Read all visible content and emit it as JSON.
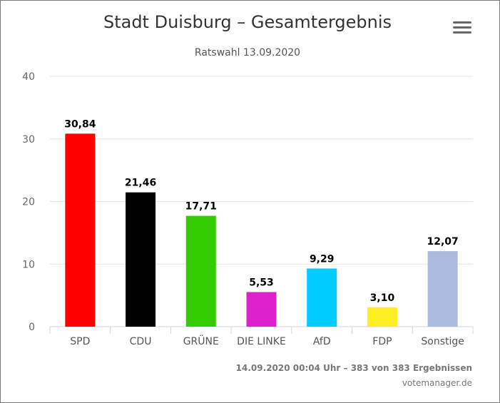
{
  "header": {
    "title": "Stadt Duisburg – Gesamtergebnis",
    "subtitle": "Ratswahl 13.09.2020"
  },
  "footer": {
    "status": "14.09.2020 00:04 Uhr – 383 von 383 Ergebnissen",
    "credit": "votemanager.de"
  },
  "menu_icon": "hamburger-menu-icon",
  "chart_data": {
    "type": "bar",
    "title": "Stadt Duisburg – Gesamtergebnis",
    "subtitle": "Ratswahl 13.09.2020",
    "categories": [
      "SPD",
      "CDU",
      "GRÜNE",
      "DIE LINKE",
      "AfD",
      "FDP",
      "Sonstige"
    ],
    "values": [
      30.84,
      21.46,
      17.71,
      5.53,
      9.29,
      3.1,
      12.07
    ],
    "value_labels": [
      "30,84",
      "21,46",
      "17,71",
      "5,53",
      "9,29",
      "3,10",
      "12,07"
    ],
    "colors": [
      "#ff0000",
      "#000000",
      "#33cc00",
      "#dd22cc",
      "#00ccff",
      "#ffee22",
      "#aabbdd"
    ],
    "ylim": [
      0,
      40
    ],
    "yticks": [
      0,
      10,
      20,
      30,
      40
    ],
    "grid": true,
    "legend": "none"
  }
}
